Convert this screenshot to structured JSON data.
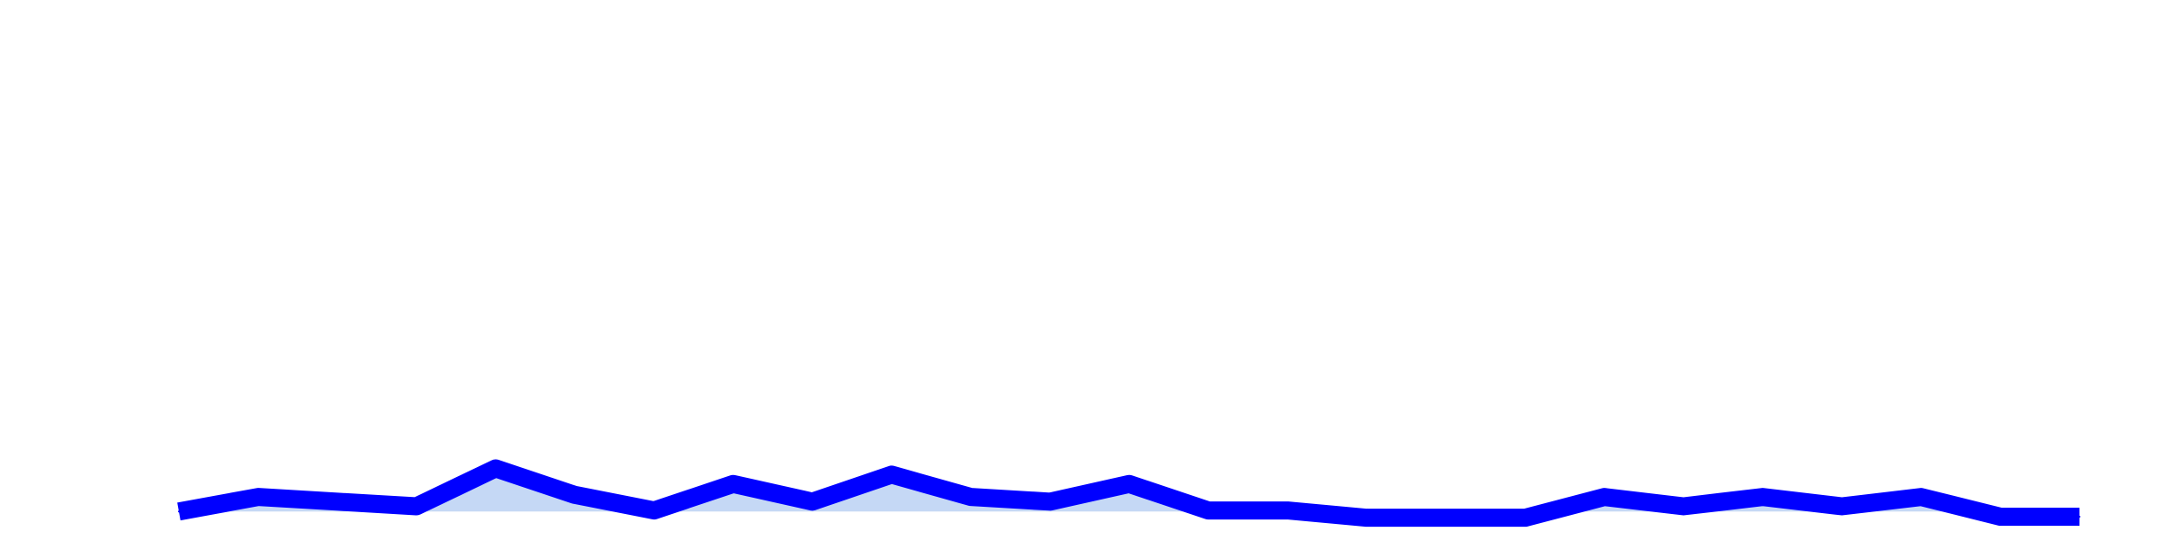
{
  "chart_data": {
    "type": "line",
    "title": "",
    "xlabel": "",
    "ylabel": "",
    "grid": false,
    "legend": false,
    "x": [
      1,
      2,
      3,
      4,
      5,
      6,
      7,
      8,
      9,
      10,
      11,
      12,
      13,
      14,
      15,
      16,
      17,
      18,
      19,
      20,
      21,
      22,
      23,
      24,
      25
    ],
    "xlim": [
      1,
      25
    ],
    "ylim": [
      0,
      100
    ],
    "series": [
      {
        "values": [
          5.0,
          7.8,
          6.9,
          6.0,
          13.3,
          8.2,
          5.2,
          10.3,
          6.9,
          12.1,
          7.8,
          6.9,
          10.3,
          5.2,
          5.2,
          3.8,
          3.8,
          3.8,
          7.8,
          6.0,
          7.8,
          6.0,
          7.8,
          4.0,
          4.0
        ]
      }
    ],
    "baseline": 5.0,
    "colors": {
      "line": "#0000ff",
      "fill": "#c5d8f5"
    }
  }
}
